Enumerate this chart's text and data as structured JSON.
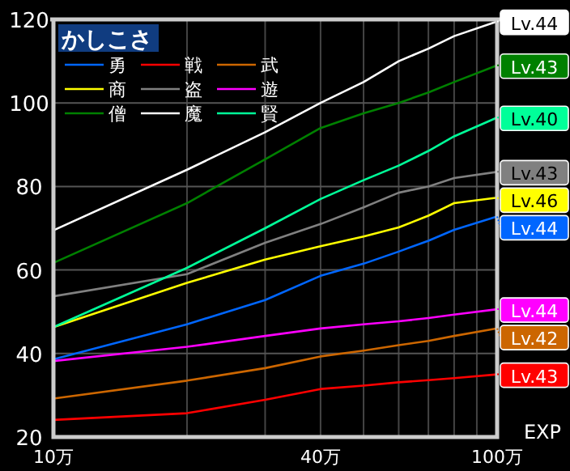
{
  "chart_data": {
    "type": "line",
    "title": "かしこさ",
    "xlabel": "EXP",
    "log": "x",
    "grid": true,
    "legend": "top left",
    "xlim": [
      10,
      100
    ],
    "ylim": [
      20,
      120
    ],
    "xticks": [
      {
        "value": 10,
        "label": "10万"
      },
      {
        "value": 20,
        "label": null
      },
      {
        "value": 30,
        "label": null
      },
      {
        "value": 40,
        "label": "40万"
      },
      {
        "value": 50,
        "label": null
      },
      {
        "value": 60,
        "label": null
      },
      {
        "value": 70,
        "label": null
      },
      {
        "value": 80,
        "label": null
      },
      {
        "value": 90,
        "label": null
      },
      {
        "value": 100,
        "label": "100万"
      }
    ],
    "yticks": [
      20,
      40,
      60,
      80,
      100,
      120
    ],
    "x": [
      10,
      20,
      30,
      40,
      50,
      60,
      70,
      80,
      100
    ],
    "series": [
      {
        "name": "勇",
        "color": "#0066ff",
        "values": [
          38.6,
          47,
          52.8,
          58.6,
          61.5,
          64.4,
          67,
          69.6,
          72.8
        ]
      },
      {
        "name": "戦",
        "color": "#ff0000",
        "values": [
          24.1,
          25.7,
          28.9,
          31.5,
          32.3,
          33.1,
          33.6,
          34.1,
          35
        ]
      },
      {
        "name": "武",
        "color": "#cc6600",
        "values": [
          29.2,
          33.5,
          36.5,
          39.3,
          40.7,
          42,
          43,
          44.2,
          46
        ]
      },
      {
        "name": "商",
        "color": "#ffff00",
        "values": [
          46.3,
          56.9,
          62.5,
          65.7,
          68,
          70.2,
          73,
          76,
          77.3
        ]
      },
      {
        "name": "盗",
        "color": "#808080",
        "values": [
          53.7,
          59,
          66.5,
          71,
          75,
          78.5,
          80,
          82,
          83.5
        ]
      },
      {
        "name": "遊",
        "color": "#ff00ff",
        "values": [
          38.2,
          41.6,
          44.2,
          46,
          47,
          47.7,
          48.5,
          49.3,
          50.6
        ]
      },
      {
        "name": "僧",
        "color": "#008000",
        "values": [
          61.7,
          76,
          86.5,
          94,
          97.5,
          100,
          102.5,
          105,
          109
        ]
      },
      {
        "name": "魔",
        "color": "#ffffff",
        "values": [
          69.5,
          84,
          93,
          100,
          105,
          110,
          113,
          116,
          119.5
        ]
      },
      {
        "name": "賢",
        "color": "#00ff99",
        "values": [
          46.3,
          60.5,
          70,
          77,
          81.5,
          85,
          88.5,
          92,
          96.5
        ]
      }
    ],
    "annotations": [
      "Lv.44",
      "Lv.43",
      "Lv.42",
      "Lv.46",
      "Lv.43",
      "Lv.44",
      "Lv.43",
      "Lv.44",
      "Lv.40"
    ]
  }
}
